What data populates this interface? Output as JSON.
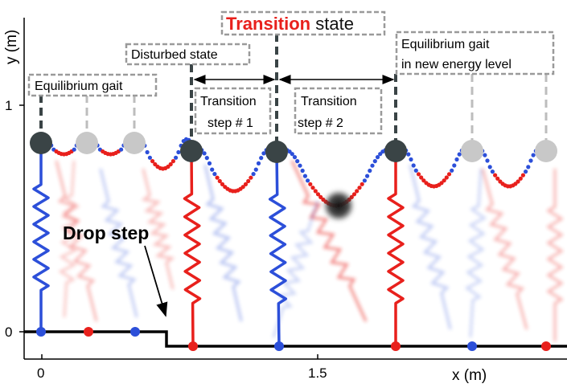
{
  "axes": {
    "y_label": "y (m)",
    "x_label": "x (m)",
    "y_ticks": [
      "1",
      "0"
    ],
    "x_ticks": [
      "0",
      "1.5"
    ]
  },
  "annotations": {
    "equilibrium_gait": "Equilibrium gait",
    "disturbed_state": "Disturbed state",
    "transition_word": "Transition",
    "state_word": " state",
    "transition_step_1": [
      "Transition",
      "step # 1"
    ],
    "transition_step_2": [
      "Transition",
      "step # 2"
    ],
    "equilibrium_gait_new": [
      "Equilibrium gait",
      "in new energy level"
    ],
    "drop_step": "Drop step"
  },
  "colors": {
    "stance_blue": "#2c4fd9",
    "stance_red": "#e8201c",
    "ground": "#000000",
    "hip_dark": "#3a4446",
    "hip_light": "#c8c8c8",
    "transition_red": "#e8201c"
  }
}
